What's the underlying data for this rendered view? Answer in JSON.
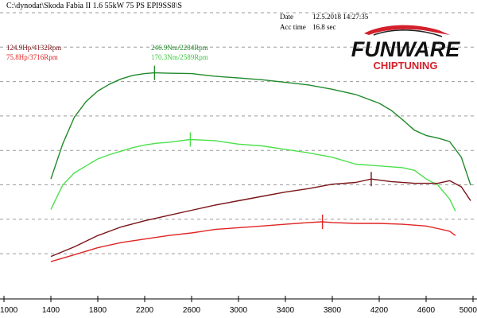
{
  "file_path": "C:\\dynodat\\Skoda Fabia II 1.6 55kW 75 PS EPI9SS8\\S",
  "meta": {
    "date_label": "Date",
    "date_value": "12.5.2018 14:27:35",
    "acc_label": "Acc time",
    "acc_value": "16.8 sec"
  },
  "peaks": {
    "power_tuned": "124.9Hp/4132Rpm",
    "power_stock": "75.8Hp/3716Rpm",
    "torque_tuned": "246.9Nm/2284Rpm",
    "torque_stock": "170.3Nm/2589Rpm"
  },
  "logo": {
    "brand": "FUNWARE",
    "sub": "CHIPTUNING"
  },
  "colors": {
    "power_tuned": "#7a1418",
    "power_stock": "#e02424",
    "torque_tuned": "#1f8a2a",
    "torque_stock": "#4be04b",
    "logo_red": "#d4202c"
  },
  "chart_data": {
    "type": "line",
    "x_ticks": [
      "1000",
      "1400",
      "1800",
      "2200",
      "2600",
      "3000",
      "3400",
      "3800",
      "4200",
      "4600",
      "5000"
    ],
    "xlim": [
      1000,
      5000
    ],
    "grid": "horizontal",
    "series": [
      {
        "key": "torque_tuned",
        "x": [
          1400,
          1500,
          1600,
          1700,
          1800,
          1900,
          2000,
          2100,
          2200,
          2284,
          2400,
          2600,
          2800,
          3000,
          3200,
          3400,
          3600,
          3800,
          4000,
          4200,
          4300,
          4400,
          4500,
          4600,
          4700,
          4800,
          4900,
          4980
        ],
        "y": [
          125,
          165,
          196,
          214,
          226,
          234,
          240,
          244,
          246,
          246.9,
          246.5,
          246,
          243,
          241,
          239,
          236,
          233,
          228,
          222,
          212,
          204,
          193,
          181,
          175,
          172,
          168,
          150,
          118
        ]
      },
      {
        "key": "torque_stock",
        "x": [
          1400,
          1500,
          1600,
          1700,
          1800,
          1900,
          2000,
          2100,
          2200,
          2300,
          2400,
          2589,
          2800,
          3000,
          3200,
          3400,
          3600,
          3800,
          4000,
          4200,
          4400,
          4500,
          4600,
          4700,
          4800,
          4850
        ],
        "y": [
          90,
          118,
          132,
          140,
          148,
          153,
          157,
          161,
          164,
          166,
          167,
          170.3,
          169,
          165,
          163,
          159,
          155,
          150,
          142,
          140,
          138,
          135,
          125,
          118,
          102,
          88
        ]
      },
      {
        "key": "power_tuned",
        "x": [
          1400,
          1600,
          1800,
          2000,
          2200,
          2400,
          2600,
          2800,
          3000,
          3200,
          3400,
          3600,
          3800,
          4000,
          4132,
          4300,
          4500,
          4700,
          4800,
          4900,
          4980
        ],
        "y": [
          36,
          47,
          60,
          70,
          77,
          83,
          89,
          95,
          100,
          105,
          110,
          114,
          119,
          121,
          124.9,
          122,
          120,
          120,
          123,
          116,
          100
        ]
      },
      {
        "key": "power_stock",
        "x": [
          1400,
          1600,
          1800,
          2000,
          2200,
          2400,
          2600,
          2800,
          3000,
          3200,
          3400,
          3600,
          3716,
          3800,
          4000,
          4200,
          4400,
          4600,
          4700,
          4800,
          4850
        ],
        "y": [
          30,
          38,
          46,
          52,
          56,
          60,
          63,
          67,
          69,
          71,
          73,
          75,
          75.8,
          75,
          74,
          74,
          73,
          71,
          68,
          65,
          60
        ]
      }
    ]
  }
}
